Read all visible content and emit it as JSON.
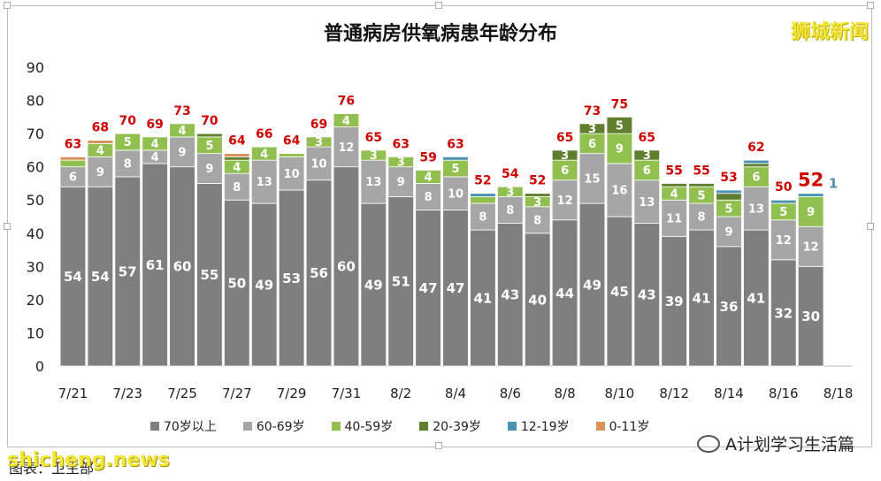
{
  "brand": "狮城新闻",
  "site": "shicheng.news",
  "source": "图表：卫生部",
  "wechat_label": "A计划学习生活篇",
  "colors": {
    "70+": "#7f7f7f",
    "60-69": "#a6a6a6",
    "40-59": "#92c050",
    "20-39": "#5f7f2e",
    "12-19": "#4b92b0",
    "0-11": "#d9925a",
    "total_label": "#d00000"
  },
  "chart_data": {
    "type": "bar",
    "stacked": true,
    "title": "普通病房供氧病患年龄分布",
    "ylim": [
      0,
      90
    ],
    "yticks": [
      0,
      10,
      20,
      30,
      40,
      50,
      60,
      70,
      80,
      90
    ],
    "categories": [
      "7/21",
      "7/22",
      "7/23",
      "7/24",
      "7/25",
      "7/26",
      "7/27",
      "7/28",
      "7/29",
      "7/30",
      "7/31",
      "8/1",
      "8/2",
      "8/3",
      "8/4",
      "8/5",
      "8/6",
      "8/7",
      "8/8",
      "8/9",
      "8/10",
      "8/11",
      "8/12",
      "8/13",
      "8/14",
      "8/15",
      "8/16",
      "8/17",
      "8/18"
    ],
    "xtick_labels": [
      "7/21",
      "7/23",
      "7/25",
      "7/27",
      "7/29",
      "7/31",
      "8/2",
      "8/4",
      "8/6",
      "8/8",
      "8/10",
      "8/12",
      "8/14",
      "8/16",
      "8/18"
    ],
    "series": [
      {
        "name": "70岁以上",
        "key": "70+",
        "values": [
          54,
          54,
          57,
          61,
          60,
          55,
          50,
          49,
          53,
          56,
          60,
          49,
          51,
          47,
          47,
          41,
          43,
          40,
          44,
          49,
          45,
          43,
          39,
          41,
          36,
          41,
          32,
          30,
          null
        ]
      },
      {
        "name": "60-69岁",
        "key": "60-69",
        "values": [
          6,
          9,
          8,
          4,
          9,
          9,
          8,
          13,
          10,
          10,
          12,
          13,
          9,
          8,
          10,
          8,
          8,
          8,
          12,
          15,
          16,
          13,
          11,
          8,
          9,
          13,
          12,
          12,
          null
        ]
      },
      {
        "name": "40-59岁",
        "key": "40-59",
        "values": [
          2,
          4,
          5,
          4,
          4,
          5,
          4,
          4,
          1,
          3,
          4,
          3,
          3,
          4,
          5,
          2,
          3,
          3,
          6,
          6,
          9,
          6,
          4,
          5,
          5,
          6,
          5,
          9,
          null
        ]
      },
      {
        "name": "20-39岁",
        "key": "20-39",
        "values": [
          0,
          0,
          0,
          0,
          0,
          1,
          1,
          0,
          0,
          0,
          0,
          0,
          0,
          0,
          0,
          0,
          0,
          1,
          3,
          3,
          5,
          3,
          1,
          1,
          2,
          1,
          0,
          0,
          null
        ]
      },
      {
        "name": "12-19岁",
        "key": "12-19",
        "values": [
          0,
          0,
          0,
          0,
          0,
          0,
          0,
          0,
          0,
          0,
          0,
          0,
          0,
          0,
          1,
          1,
          0,
          0,
          0,
          0,
          0,
          0,
          0,
          0,
          1,
          1,
          1,
          1,
          null
        ]
      },
      {
        "name": "0-11岁",
        "key": "0-11",
        "values": [
          1,
          1,
          0,
          0,
          0,
          0,
          1,
          0,
          0,
          0,
          0,
          0,
          0,
          0,
          0,
          0,
          0,
          0,
          0,
          0,
          0,
          0,
          0,
          0,
          0,
          0,
          0,
          0,
          null
        ]
      }
    ],
    "totals": [
      63,
      68,
      70,
      69,
      73,
      70,
      64,
      66,
      64,
      69,
      76,
      65,
      63,
      59,
      63,
      52,
      54,
      52,
      65,
      73,
      75,
      65,
      55,
      55,
      53,
      62,
      50,
      52,
      null
    ],
    "highlight_total_index": 27,
    "extra_label": {
      "index": 27,
      "text": "1"
    },
    "grid": false,
    "legend_position": "bottom"
  }
}
